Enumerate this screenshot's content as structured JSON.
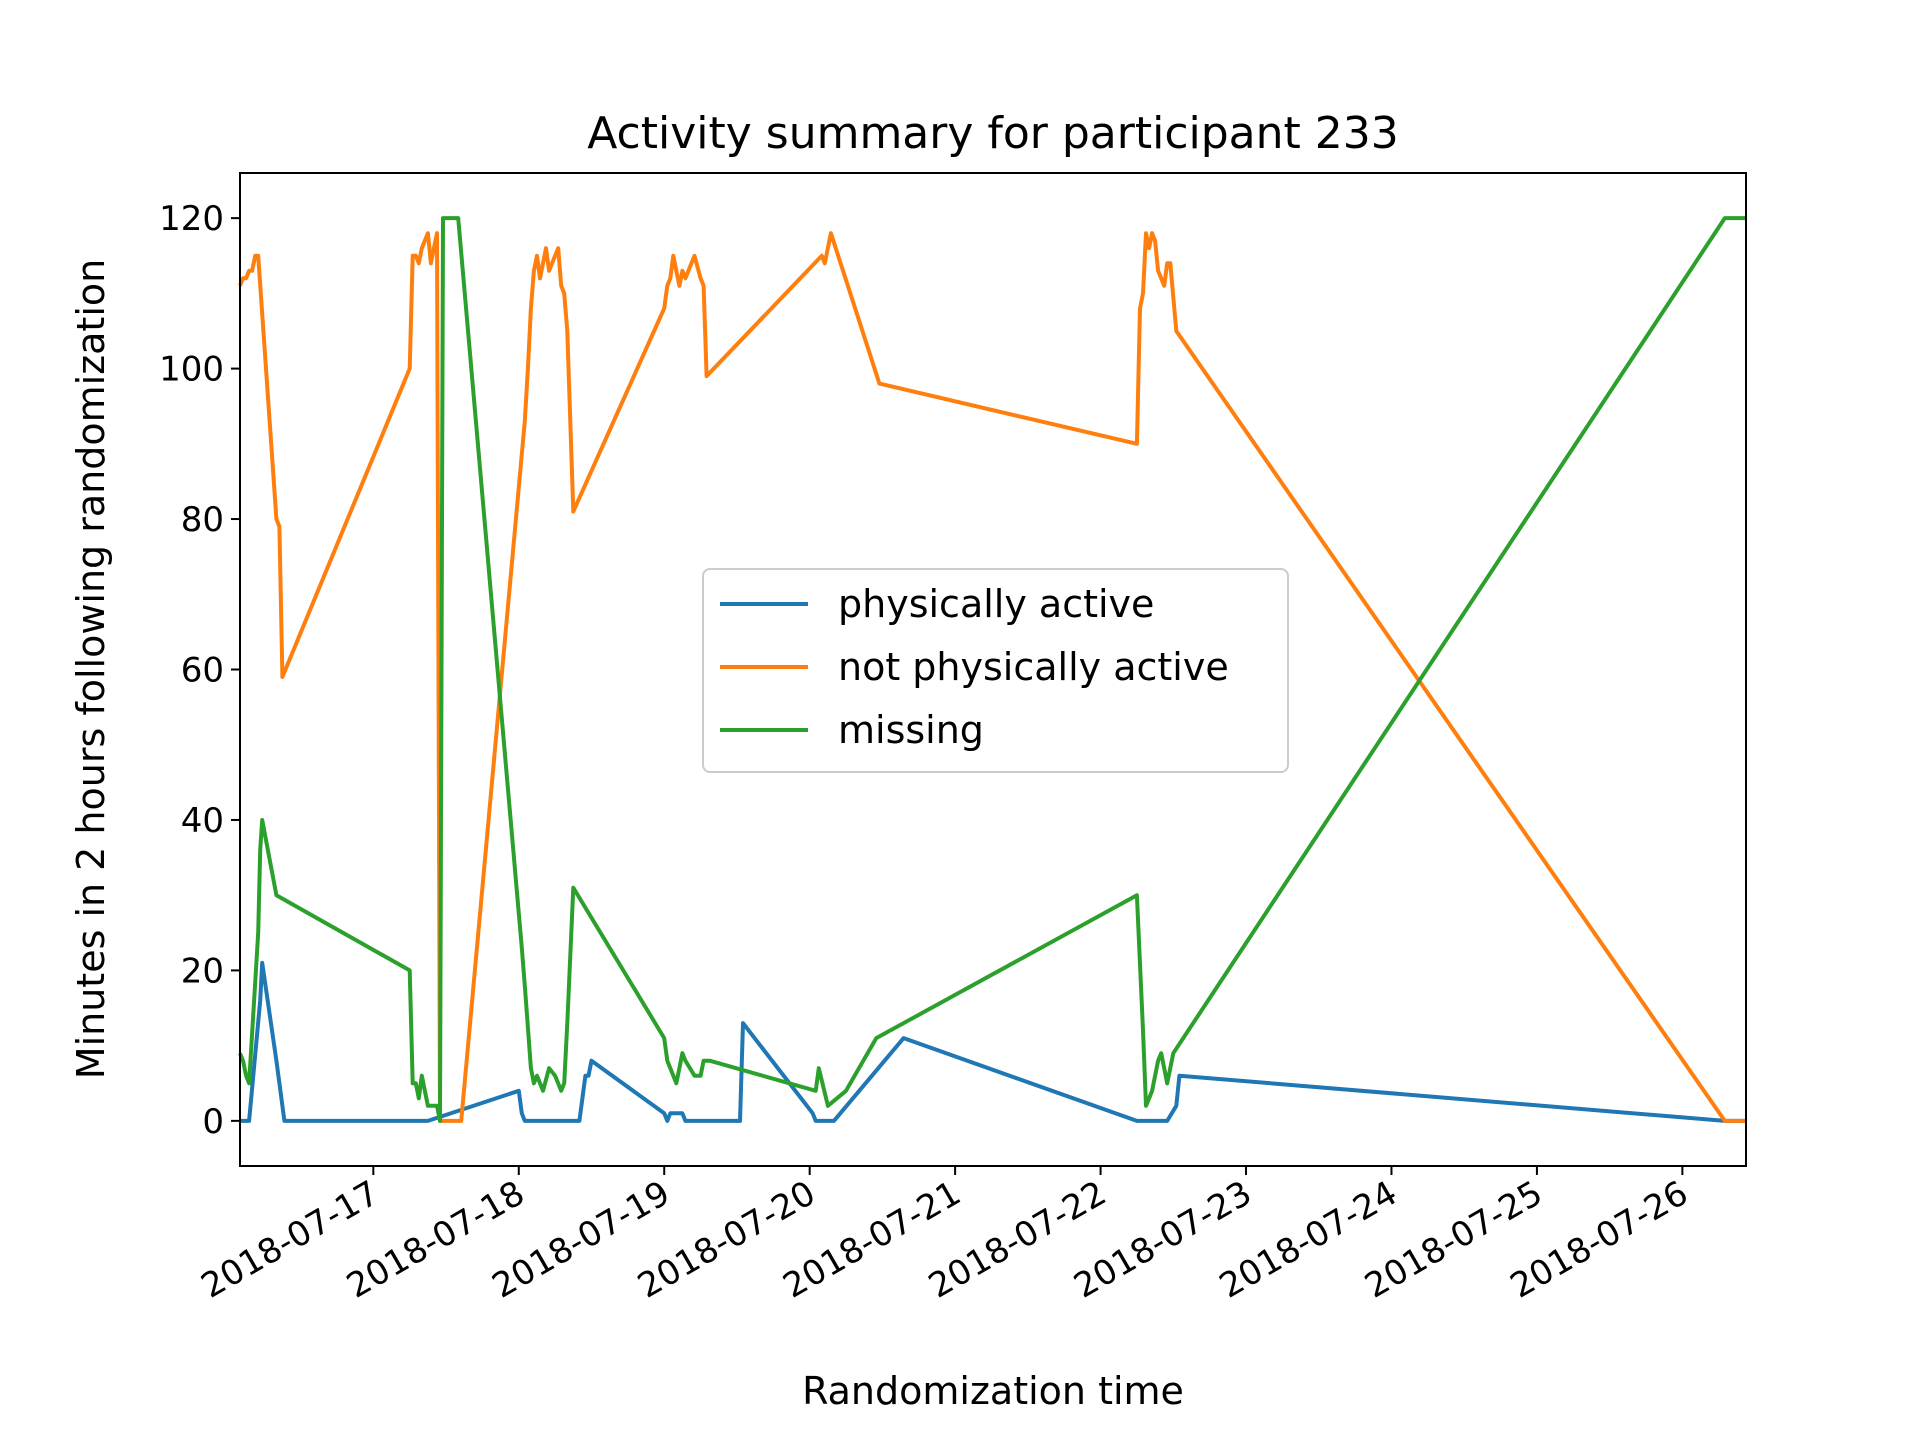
{
  "chart_data": {
    "type": "line",
    "title": "Activity summary for participant 233",
    "xlabel": "Randomization time",
    "ylabel": "Minutes in 2 hours following randomization",
    "ylim": [
      -6,
      126
    ],
    "xlim": [
      "2018-07-16 02:00",
      "2018-07-26 10:30"
    ],
    "yticks": [
      0,
      20,
      40,
      60,
      80,
      100,
      120
    ],
    "xticks": [
      "2018-07-17",
      "2018-07-18",
      "2018-07-19",
      "2018-07-20",
      "2018-07-21",
      "2018-07-22",
      "2018-07-23",
      "2018-07-24",
      "2018-07-25",
      "2018-07-26"
    ],
    "grid": false,
    "legend": "center",
    "series": [
      {
        "name": "physically active",
        "color": "#1f77b4",
        "points": [
          [
            "2018-07-16 02:00",
            0
          ],
          [
            "2018-07-16 03:30",
            0
          ],
          [
            "2018-07-16 05:20",
            16
          ],
          [
            "2018-07-16 05:40",
            21
          ],
          [
            "2018-07-16 08:00",
            8
          ],
          [
            "2018-07-16 09:20",
            0
          ],
          [
            "2018-07-16 09:30",
            0
          ],
          [
            "2018-07-17 06:00",
            0
          ],
          [
            "2018-07-17 07:30",
            0
          ],
          [
            "2018-07-17 09:00",
            0
          ],
          [
            "2018-07-18 00:00",
            4
          ],
          [
            "2018-07-18 00:30",
            1
          ],
          [
            "2018-07-18 01:00",
            0
          ],
          [
            "2018-07-18 10:00",
            0
          ],
          [
            "2018-07-18 10:30",
            3
          ],
          [
            "2018-07-18 11:00",
            6
          ],
          [
            "2018-07-18 11:30",
            6
          ],
          [
            "2018-07-18 12:00",
            8
          ],
          [
            "2018-07-19 00:00",
            1
          ],
          [
            "2018-07-19 00:30",
            0
          ],
          [
            "2018-07-19 01:00",
            1
          ],
          [
            "2018-07-19 03:00",
            1
          ],
          [
            "2018-07-19 03:30",
            0
          ],
          [
            "2018-07-19 12:30",
            0
          ],
          [
            "2018-07-19 13:00",
            13
          ],
          [
            "2018-07-20 00:30",
            1
          ],
          [
            "2018-07-20 01:00",
            0
          ],
          [
            "2018-07-20 04:00",
            0
          ],
          [
            "2018-07-20 15:30",
            11
          ],
          [
            "2018-07-22 06:00",
            0
          ],
          [
            "2018-07-22 07:30",
            0
          ],
          [
            "2018-07-22 11:00",
            0
          ],
          [
            "2018-07-22 12:30",
            2
          ],
          [
            "2018-07-22 13:00",
            6
          ],
          [
            "2018-07-26 07:00",
            0
          ],
          [
            "2018-07-26 10:30",
            0
          ]
        ]
      },
      {
        "name": "not physically active",
        "color": "#ff7f0e",
        "points": [
          [
            "2018-07-16 02:00",
            111
          ],
          [
            "2018-07-16 02:30",
            112
          ],
          [
            "2018-07-16 03:00",
            112
          ],
          [
            "2018-07-16 03:30",
            113
          ],
          [
            "2018-07-16 04:00",
            113
          ],
          [
            "2018-07-16 04:30",
            115
          ],
          [
            "2018-07-16 05:00",
            115
          ],
          [
            "2018-07-16 08:00",
            80
          ],
          [
            "2018-07-16 08:30",
            79
          ],
          [
            "2018-07-16 09:00",
            59
          ],
          [
            "2018-07-17 06:00",
            100
          ],
          [
            "2018-07-17 06:30",
            115
          ],
          [
            "2018-07-17 07:00",
            115
          ],
          [
            "2018-07-17 07:30",
            114
          ],
          [
            "2018-07-17 08:00",
            116
          ],
          [
            "2018-07-17 08:30",
            117
          ],
          [
            "2018-07-17 09:00",
            118
          ],
          [
            "2018-07-17 09:30",
            114
          ],
          [
            "2018-07-17 10:00",
            116
          ],
          [
            "2018-07-17 10:30",
            118
          ],
          [
            "2018-07-17 11:00",
            0
          ],
          [
            "2018-07-17 14:30",
            0
          ],
          [
            "2018-07-18 01:00",
            93
          ],
          [
            "2018-07-18 01:30",
            100
          ],
          [
            "2018-07-18 02:00",
            108
          ],
          [
            "2018-07-18 02:30",
            113
          ],
          [
            "2018-07-18 03:00",
            115
          ],
          [
            "2018-07-18 03:30",
            112
          ],
          [
            "2018-07-18 04:00",
            114
          ],
          [
            "2018-07-18 04:30",
            116
          ],
          [
            "2018-07-18 05:00",
            113
          ],
          [
            "2018-07-18 05:30",
            114
          ],
          [
            "2018-07-18 06:00",
            115
          ],
          [
            "2018-07-18 06:30",
            116
          ],
          [
            "2018-07-18 07:00",
            111
          ],
          [
            "2018-07-18 07:30",
            110
          ],
          [
            "2018-07-18 08:00",
            105
          ],
          [
            "2018-07-18 09:00",
            81
          ],
          [
            "2018-07-19 00:00",
            108
          ],
          [
            "2018-07-19 00:30",
            111
          ],
          [
            "2018-07-19 01:00",
            112
          ],
          [
            "2018-07-19 01:30",
            115
          ],
          [
            "2018-07-19 02:00",
            113
          ],
          [
            "2018-07-19 02:30",
            111
          ],
          [
            "2018-07-19 03:00",
            113
          ],
          [
            "2018-07-19 03:30",
            112
          ],
          [
            "2018-07-19 05:00",
            115
          ],
          [
            "2018-07-19 06:00",
            112
          ],
          [
            "2018-07-19 06:30",
            111
          ],
          [
            "2018-07-19 07:00",
            99
          ],
          [
            "2018-07-20 02:00",
            115
          ],
          [
            "2018-07-20 02:30",
            114
          ],
          [
            "2018-07-20 03:30",
            118
          ],
          [
            "2018-07-20 11:30",
            98
          ],
          [
            "2018-07-22 06:00",
            90
          ],
          [
            "2018-07-22 06:30",
            108
          ],
          [
            "2018-07-22 07:00",
            110
          ],
          [
            "2018-07-22 07:30",
            118
          ],
          [
            "2018-07-22 08:00",
            116
          ],
          [
            "2018-07-22 08:30",
            118
          ],
          [
            "2018-07-22 09:00",
            117
          ],
          [
            "2018-07-22 09:30",
            113
          ],
          [
            "2018-07-22 10:00",
            112
          ],
          [
            "2018-07-22 10:30",
            111
          ],
          [
            "2018-07-22 11:00",
            114
          ],
          [
            "2018-07-22 11:30",
            114
          ],
          [
            "2018-07-22 12:30",
            105
          ],
          [
            "2018-07-26 07:00",
            0
          ],
          [
            "2018-07-26 10:30",
            0
          ]
        ]
      },
      {
        "name": "missing",
        "color": "#2ca02c",
        "points": [
          [
            "2018-07-16 02:00",
            9
          ],
          [
            "2018-07-16 02:30",
            8
          ],
          [
            "2018-07-16 03:00",
            6
          ],
          [
            "2018-07-16 03:30",
            5
          ],
          [
            "2018-07-16 05:00",
            25
          ],
          [
            "2018-07-16 05:20",
            36
          ],
          [
            "2018-07-16 05:40",
            40
          ],
          [
            "2018-07-16 08:00",
            30
          ],
          [
            "2018-07-17 06:00",
            20
          ],
          [
            "2018-07-17 06:30",
            5
          ],
          [
            "2018-07-17 07:00",
            5
          ],
          [
            "2018-07-17 07:30",
            3
          ],
          [
            "2018-07-17 08:00",
            6
          ],
          [
            "2018-07-17 09:00",
            2
          ],
          [
            "2018-07-17 10:30",
            2
          ],
          [
            "2018-07-17 11:00",
            0
          ],
          [
            "2018-07-17 11:30",
            120
          ],
          [
            "2018-07-17 14:00",
            120
          ],
          [
            "2018-07-18 00:30",
            23
          ],
          [
            "2018-07-18 01:00",
            18
          ],
          [
            "2018-07-18 02:00",
            7
          ],
          [
            "2018-07-18 02:30",
            5
          ],
          [
            "2018-07-18 03:00",
            6
          ],
          [
            "2018-07-18 04:00",
            4
          ],
          [
            "2018-07-18 05:00",
            7
          ],
          [
            "2018-07-18 06:00",
            6
          ],
          [
            "2018-07-18 07:00",
            4
          ],
          [
            "2018-07-18 07:30",
            5
          ],
          [
            "2018-07-18 08:00",
            13
          ],
          [
            "2018-07-18 09:00",
            31
          ],
          [
            "2018-07-19 00:00",
            11
          ],
          [
            "2018-07-19 00:30",
            8
          ],
          [
            "2018-07-19 01:30",
            6
          ],
          [
            "2018-07-19 02:00",
            5
          ],
          [
            "2018-07-19 02:30",
            7
          ],
          [
            "2018-07-19 03:00",
            9
          ],
          [
            "2018-07-19 03:30",
            8
          ],
          [
            "2018-07-19 05:00",
            6
          ],
          [
            "2018-07-19 06:00",
            6
          ],
          [
            "2018-07-19 06:30",
            8
          ],
          [
            "2018-07-19 07:30",
            8
          ],
          [
            "2018-07-20 01:00",
            4
          ],
          [
            "2018-07-20 01:30",
            7
          ],
          [
            "2018-07-20 03:00",
            2
          ],
          [
            "2018-07-20 06:00",
            4
          ],
          [
            "2018-07-20 11:00",
            11
          ],
          [
            "2018-07-22 06:00",
            30
          ],
          [
            "2018-07-22 07:00",
            12
          ],
          [
            "2018-07-22 07:30",
            2
          ],
          [
            "2018-07-22 08:00",
            3
          ],
          [
            "2018-07-22 08:30",
            4
          ],
          [
            "2018-07-22 09:30",
            8
          ],
          [
            "2018-07-22 10:00",
            9
          ],
          [
            "2018-07-22 11:00",
            5
          ],
          [
            "2018-07-22 12:00",
            9
          ],
          [
            "2018-07-26 07:00",
            120
          ],
          [
            "2018-07-26 10:30",
            120
          ]
        ]
      }
    ]
  }
}
